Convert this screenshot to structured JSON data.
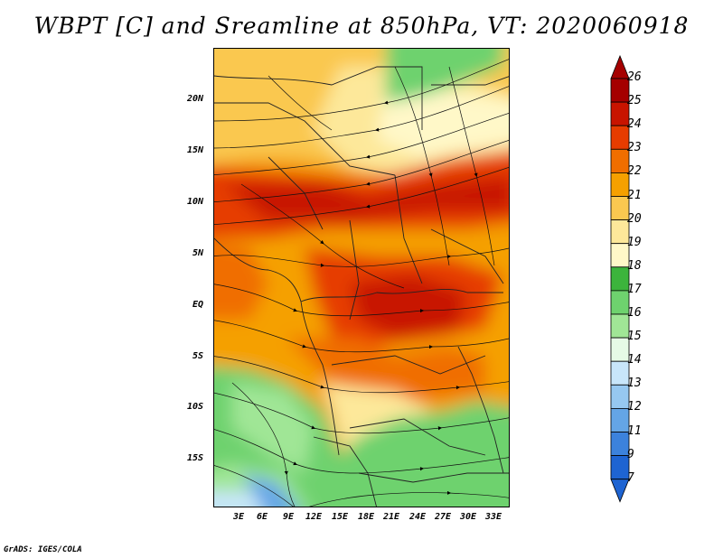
{
  "title": "WBPT [C] and Sreamline at 850hPa, VT: 2020060918",
  "credit": "GrADS: IGES/COLA",
  "map": {
    "lat_labels": [
      "20N",
      "15N",
      "10N",
      "5N",
      "EQ",
      "5S",
      "10S",
      "15S"
    ],
    "lon_labels": [
      "3E",
      "6E",
      "9E",
      "12E",
      "15E",
      "18E",
      "21E",
      "24E",
      "27E",
      "30E",
      "33E"
    ]
  },
  "colorbar": {
    "labels": [
      "26",
      "25",
      "24",
      "23",
      "22",
      "21",
      "20",
      "19",
      "18",
      "17",
      "16",
      "15",
      "14",
      "13",
      "12",
      "11",
      "9",
      "7"
    ],
    "colors": [
      "#a50000",
      "#c81400",
      "#e63c00",
      "#f06e00",
      "#f5a000",
      "#fac850",
      "#fde89a",
      "#fff8c8",
      "#3cb43c",
      "#6ed26e",
      "#a0e696",
      "#e6fae6",
      "#c8e6fa",
      "#96c8f0",
      "#64a5e6",
      "#3c82dc",
      "#1e64d2"
    ],
    "top_arrow_color": "#a50000",
    "bottom_arrow_color": "#1e64d2"
  }
}
